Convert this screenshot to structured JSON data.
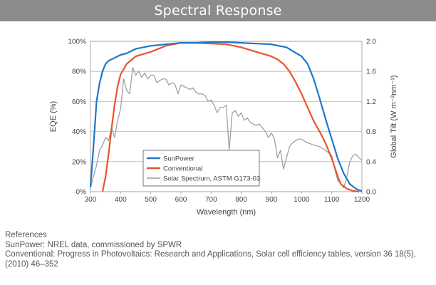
{
  "header": {
    "title": "Spectral Response"
  },
  "references": {
    "heading": "References",
    "lines": [
      "SunPower: NREL data, commissioned by SPWR",
      "Conventional: Progress in Photovoltaics: Research and Applications, Solar cell efficiency tables, version 36 18(5), (2010) 46–352"
    ]
  },
  "chart_data": {
    "type": "line",
    "xlabel": "Wavelength (nm)",
    "ylabel_left": "EQE (%)",
    "ylabel_right": "Global Tilt (W m⁻²nm⁻¹)",
    "xlim": [
      300,
      1200
    ],
    "ylim_left": [
      0,
      100
    ],
    "ylim_right": [
      0,
      2.0
    ],
    "x_ticks": [
      "300",
      "400",
      "500",
      "600",
      "700",
      "800",
      "900",
      "1000",
      "1100",
      "1200"
    ],
    "y_ticks_left": [
      "0%",
      "20%",
      "40%",
      "60%",
      "80%",
      "100%"
    ],
    "y_ticks_right": [
      "0.0",
      "0.4",
      "0.8",
      "1.2",
      "1.6",
      "2.0"
    ],
    "grid": true,
    "legend_position": "lower-left inside plot",
    "series": [
      {
        "name": "SunPower",
        "axis": "left",
        "color": "#1f77c8",
        "x": [
          300,
          310,
          320,
          330,
          340,
          350,
          360,
          380,
          400,
          420,
          450,
          500,
          550,
          600,
          650,
          700,
          750,
          800,
          850,
          900,
          950,
          1000,
          1020,
          1040,
          1060,
          1080,
          1100,
          1120,
          1140,
          1160,
          1180,
          1190,
          1200
        ],
        "y": [
          3,
          30,
          60,
          72,
          80,
          85,
          87,
          89,
          91,
          92,
          95,
          97,
          98,
          99,
          99,
          99.5,
          99.5,
          99,
          98.5,
          98,
          96,
          90,
          85,
          75,
          62,
          48,
          35,
          22,
          12,
          5,
          2,
          1,
          0.5
        ]
      },
      {
        "name": "Conventional",
        "axis": "left",
        "color": "#e8542a",
        "x": [
          340,
          350,
          360,
          370,
          380,
          390,
          400,
          420,
          450,
          500,
          550,
          600,
          650,
          700,
          750,
          800,
          850,
          900,
          920,
          940,
          960,
          980,
          1000,
          1020,
          1040,
          1060,
          1080,
          1100,
          1110,
          1120,
          1130,
          1150,
          1170,
          1190
        ],
        "y": [
          0,
          10,
          25,
          42,
          58,
          70,
          78,
          85,
          90,
          93,
          97,
          99,
          99,
          98.5,
          98,
          96,
          93,
          90,
          88,
          85,
          80,
          73,
          65,
          56,
          47,
          40,
          32,
          22,
          16,
          10,
          5,
          2,
          0.5,
          0
        ]
      },
      {
        "name": "Solar Spectrum, ASTM G173-03",
        "axis": "right",
        "color": "#9a9a9a",
        "x": [
          300,
          310,
          320,
          330,
          340,
          350,
          360,
          370,
          380,
          390,
          400,
          410,
          420,
          430,
          440,
          450,
          460,
          470,
          480,
          490,
          500,
          510,
          520,
          530,
          540,
          550,
          560,
          570,
          580,
          590,
          600,
          610,
          620,
          630,
          640,
          650,
          660,
          670,
          680,
          690,
          700,
          710,
          720,
          730,
          740,
          750,
          760,
          770,
          780,
          790,
          800,
          810,
          820,
          830,
          840,
          850,
          860,
          870,
          880,
          890,
          900,
          910,
          920,
          930,
          940,
          950,
          960,
          970,
          980,
          990,
          1000,
          1010,
          1020,
          1040,
          1060,
          1080,
          1100,
          1110,
          1120,
          1130,
          1140,
          1150,
          1160,
          1170,
          1180,
          1190,
          1200
        ],
        "y": [
          0.05,
          0.2,
          0.35,
          0.55,
          0.62,
          0.72,
          0.68,
          0.85,
          0.72,
          0.95,
          1.1,
          1.5,
          1.35,
          1.3,
          1.65,
          1.55,
          1.6,
          1.52,
          1.58,
          1.5,
          1.55,
          1.55,
          1.45,
          1.48,
          1.5,
          1.5,
          1.42,
          1.45,
          1.43,
          1.3,
          1.42,
          1.4,
          1.38,
          1.36,
          1.38,
          1.32,
          1.3,
          1.3,
          1.28,
          1.2,
          1.22,
          1.15,
          1.05,
          1.12,
          1.12,
          1.15,
          0.55,
          1.05,
          1.08,
          1.0,
          1.05,
          0.95,
          0.98,
          0.92,
          0.9,
          0.88,
          0.9,
          0.85,
          0.8,
          0.72,
          0.78,
          0.7,
          0.45,
          0.55,
          0.3,
          0.45,
          0.6,
          0.65,
          0.68,
          0.7,
          0.7,
          0.67,
          0.65,
          0.62,
          0.6,
          0.55,
          0.48,
          0.3,
          0.15,
          0.1,
          0.05,
          0.2,
          0.4,
          0.48,
          0.5,
          0.45,
          0.42
        ]
      }
    ]
  }
}
